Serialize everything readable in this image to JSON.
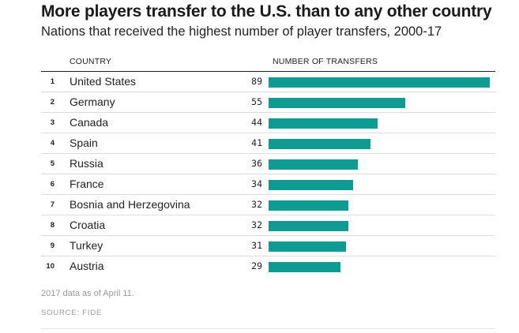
{
  "title": "More players transfer to the U.S. than to any other country",
  "subtitle": "Nations that received the highest number of player transfers, 2000-17",
  "columns": {
    "country": "COUNTRY",
    "transfers": "NUMBER OF TRANSFERS"
  },
  "note": "2017 data as of April 11.",
  "source": "SOURCE: FIDE",
  "colors": {
    "bar": "#0f9a94"
  },
  "chart_data": {
    "type": "bar",
    "orientation": "horizontal",
    "title": "More players transfer to the U.S. than to any other country",
    "subtitle": "Nations that received the highest number of player transfers, 2000-17",
    "xlabel": "NUMBER OF TRANSFERS",
    "ylabel": "COUNTRY",
    "ranks": [
      "1",
      "2",
      "3",
      "4",
      "5",
      "6",
      "7",
      "8",
      "9",
      "10"
    ],
    "categories": [
      "United States",
      "Germany",
      "Canada",
      "Spain",
      "Russia",
      "France",
      "Bosnia and Herzegovina",
      "Croatia",
      "Turkey",
      "Austria"
    ],
    "values": [
      89,
      55,
      44,
      41,
      36,
      34,
      32,
      32,
      31,
      29
    ],
    "xlim": [
      0,
      89
    ],
    "grid": false
  }
}
